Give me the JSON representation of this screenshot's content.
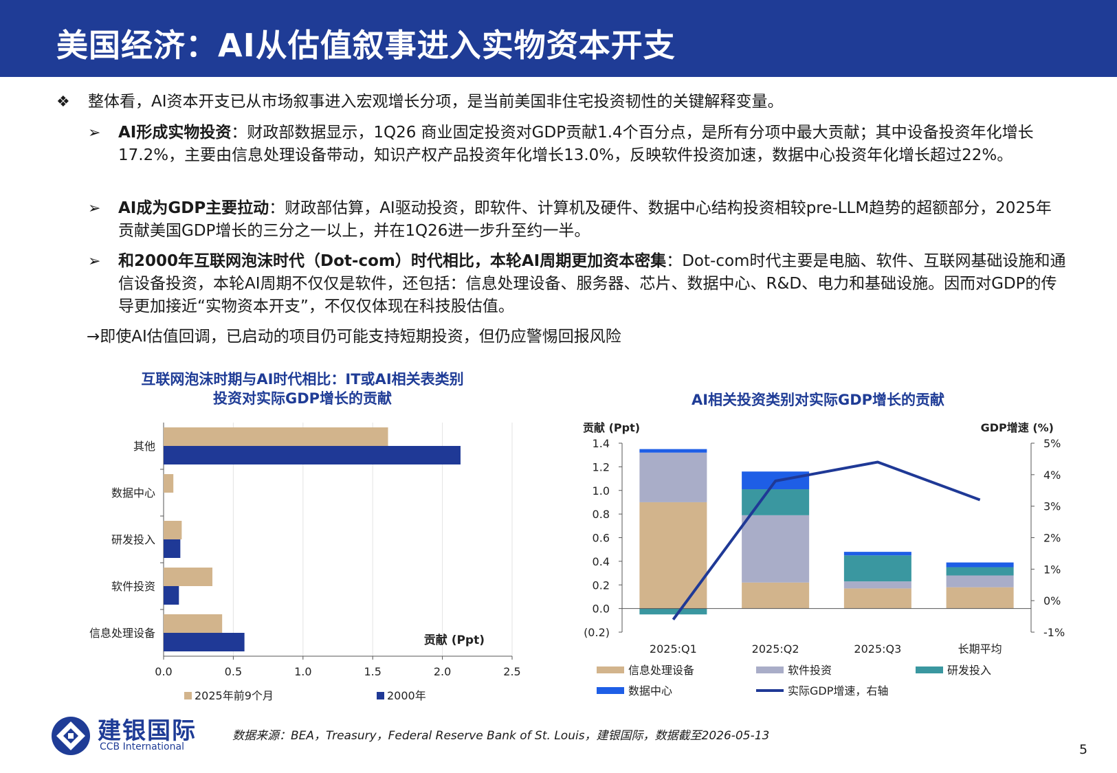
{
  "header": {
    "title": "美国经济：AI从估值叙事进入实物资本开支"
  },
  "bullets": {
    "main": "整体看，AI资本开支已从市场叙事进入宏观增长分项，是当前美国非住宅投资韧性的关键解释变量。",
    "sub1_bold": "AI形成实物投资",
    "sub1_text": "：财政部数据显示，1Q26 商业固定投资对GDP贡献1.4个百分点，是所有分项中最大贡献；其中设备投资年化增长17.2%，主要由信息处理设备带动，知识产权产品投资年化增长13.0%，反映软件投资加速，数据中心投资年化增长超过22%。",
    "sub2_bold": "AI成为GDP主要拉动",
    "sub2_text": "：财政部估算，AI驱动投资，即软件、计算机及硬件、数据中心结构投资相较pre-LLM趋势的超额部分，2025年贡献美国GDP增长的三分之一以上，并在1Q26进一步升至约一半。",
    "sub3_bold": "和2000年互联网泡沫时代（Dot-com）时代相比，本轮AI周期更加资本密集",
    "sub3_text": "：Dot-com时代主要是电脑、软件、互联网基础设施和通信设备投资，本轮AI周期不仅仅是软件，还包括：信息处理设备、服务器、芯片、数据中心、R&D、电力和基础设施。因而对GDP的传导更加接近“实物资本开支”，不仅仅体现在科技股估值。",
    "conclusion": "→即使AI估值回调，已启动的项目仍可能支持短期投资，但仍应警惕回报风险"
  },
  "chart_data": [
    {
      "type": "bar",
      "orientation": "horizontal",
      "title_line1": "互联网泡沫时期与AI时代相比：IT或AI相关表类别",
      "title_line2": "投资对实际GDP增长的贡献",
      "xlabel": "贡献 (Ppt)",
      "categories": [
        "其他",
        "数据中心",
        "研发投入",
        "软件投资",
        "信息处理设备"
      ],
      "series": [
        {
          "name": "2025年前9个月",
          "color": "#d2b48c",
          "values": [
            1.61,
            0.07,
            0.13,
            0.35,
            0.42
          ]
        },
        {
          "name": "2000年",
          "color": "#1f3996",
          "values": [
            2.13,
            0.0,
            0.12,
            0.11,
            0.58
          ]
        }
      ],
      "xlim": [
        0,
        2.5
      ],
      "xticks": [
        "0.0",
        "0.5",
        "1.0",
        "1.5",
        "2.0",
        "2.5"
      ],
      "legend": "bottom"
    },
    {
      "type": "bar",
      "stacked": true,
      "title": "AI相关投资类别对实际GDP增长的贡献",
      "ylabel_left": "贡献 (Ppt)",
      "ylabel_right": "GDP增速 (%)",
      "categories": [
        "2025:Q1",
        "2025:Q2",
        "2025:Q3",
        "长期平均"
      ],
      "series": [
        {
          "name": "信息处理设备",
          "color": "#d2b48c",
          "values": [
            0.9,
            0.22,
            0.17,
            0.18
          ]
        },
        {
          "name": "软件投资",
          "color": "#a9adc8",
          "values": [
            0.42,
            0.57,
            0.06,
            0.1
          ]
        },
        {
          "name": "研发投入",
          "color": "#3a97a0",
          "values": [
            -0.05,
            0.22,
            0.22,
            0.07
          ]
        },
        {
          "name": "数据中心",
          "color": "#1e5ee6",
          "values": [
            0.03,
            0.15,
            0.03,
            0.04
          ]
        }
      ],
      "line": {
        "name": "实际GDP增速，右轴",
        "color": "#1f3996",
        "values": [
          -0.6,
          3.8,
          4.4,
          3.2
        ]
      },
      "ylim_left": [
        -0.2,
        1.4
      ],
      "yticks_left": [
        "(0.2)",
        "0.0",
        "0.2",
        "0.4",
        "0.6",
        "0.8",
        "1.0",
        "1.2",
        "1.4"
      ],
      "ylim_right": [
        -1,
        5
      ],
      "yticks_right": [
        "-1%",
        "0%",
        "1%",
        "2%",
        "3%",
        "4%",
        "5%"
      ],
      "legend": "bottom"
    }
  ],
  "footer": {
    "logo_cn": "建银国际",
    "logo_en": "CCB International",
    "source": "数据来源：BEA，Treasury，Federal Reserve Bank of St. Louis，建银国际，数据截至2026-05-13",
    "page": "5"
  }
}
